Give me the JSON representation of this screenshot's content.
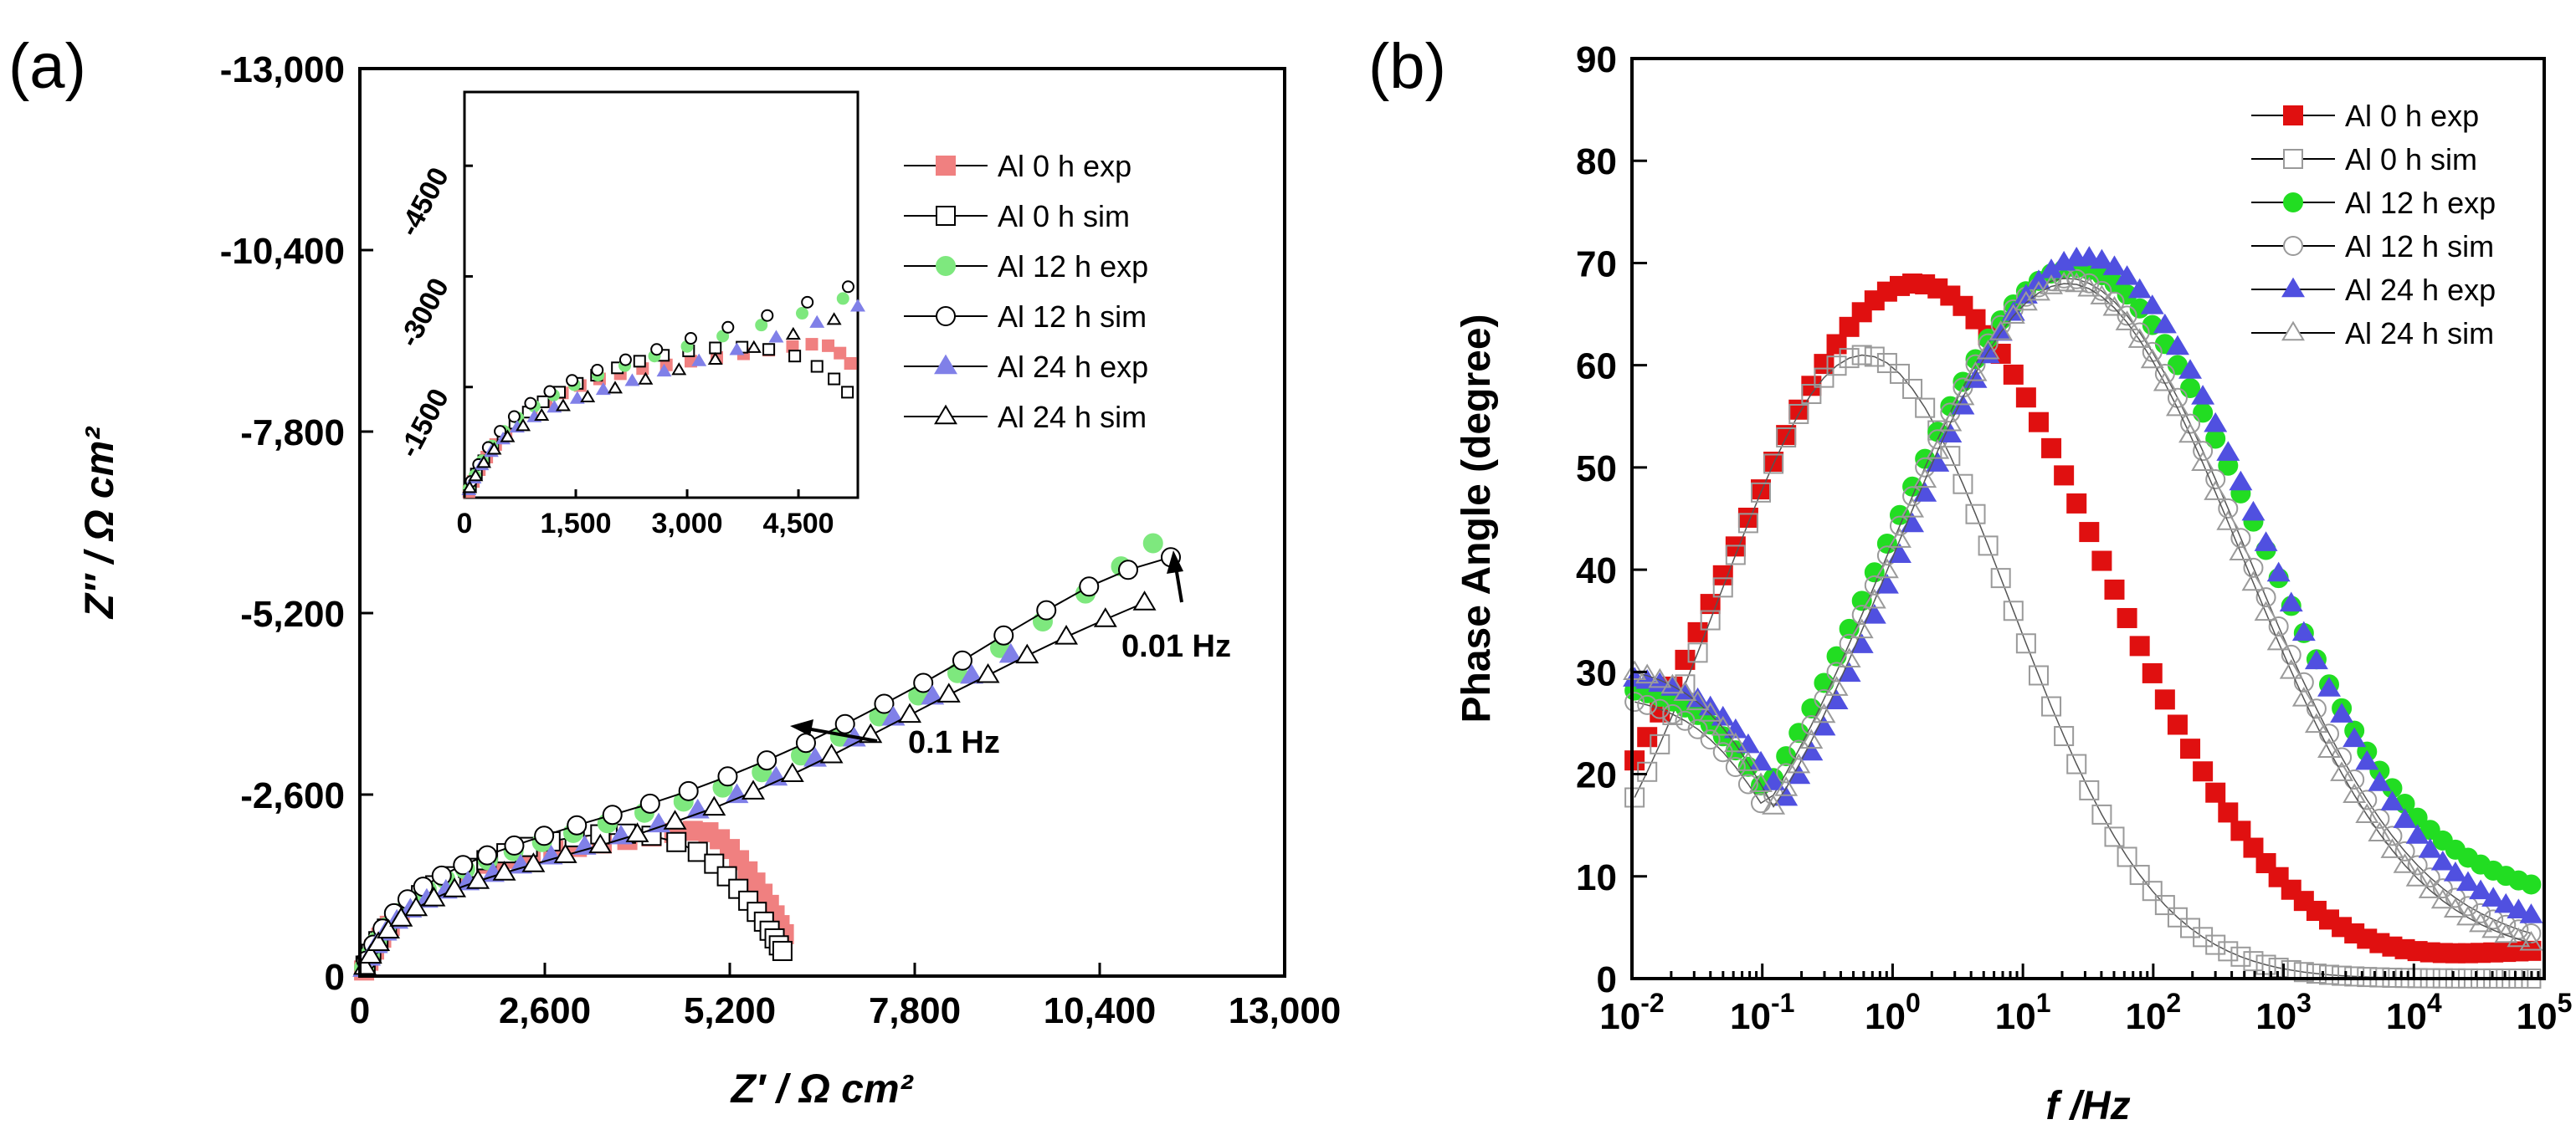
{
  "chart_data": [
    {
      "type": "scatter",
      "panel_label": "(a)",
      "xlabel": "Z′ / Ω cm²",
      "ylabel": "Z′′ / Ω cm²",
      "xlim": [
        0,
        13000
      ],
      "ylim": [
        0,
        -13000
      ],
      "x_ticks": [
        "0",
        "2,600",
        "5,200",
        "7,800",
        "10,400",
        "13,000"
      ],
      "y_ticks": [
        "0",
        "-2,600",
        "-5,200",
        "-7,800",
        "-10,400",
        "-13,000"
      ],
      "annotations": [
        "0.01 Hz",
        "0.1 Hz"
      ],
      "series": [
        {
          "name": "Al 0 h exp",
          "marker": "square",
          "filled": true,
          "color": "#f08080",
          "x": [
            60,
            120,
            200,
            300,
            420,
            560,
            720,
            900,
            1100,
            1320,
            1560,
            1820,
            2100,
            2400,
            2720,
            3050,
            3400,
            3760,
            4100,
            4420,
            4680,
            4900,
            5060,
            5200,
            5330,
            5450,
            5560,
            5660,
            5750,
            5830,
            5900,
            5960
          ],
          "y": [
            -80,
            -220,
            -380,
            -550,
            -720,
            -880,
            -1030,
            -1170,
            -1300,
            -1420,
            -1520,
            -1610,
            -1680,
            -1750,
            -1800,
            -1850,
            -1900,
            -1950,
            -2000,
            -2050,
            -2080,
            -2060,
            -1960,
            -1820,
            -1660,
            -1500,
            -1340,
            -1180,
            -1020,
            -870,
            -730,
            -600
          ]
        },
        {
          "name": "Al 0 h sim",
          "marker": "square",
          "filled": false,
          "color": "#000000",
          "x": [
            80,
            160,
            260,
            380,
            520,
            680,
            860,
            1060,
            1280,
            1520,
            1780,
            2060,
            2360,
            2680,
            3020,
            3380,
            3740,
            4100,
            4450,
            4750,
            4980,
            5160,
            5320,
            5460,
            5580,
            5680,
            5760,
            5830,
            5890,
            5940
          ],
          "y": [
            -150,
            -320,
            -500,
            -680,
            -850,
            -1010,
            -1160,
            -1300,
            -1430,
            -1550,
            -1660,
            -1760,
            -1850,
            -1930,
            -1990,
            -2030,
            -2040,
            -2010,
            -1920,
            -1780,
            -1610,
            -1430,
            -1250,
            -1080,
            -920,
            -780,
            -650,
            -540,
            -440,
            -360
          ]
        },
        {
          "name": "Al 12 h exp",
          "marker": "circle",
          "filled": true,
          "color": "#7ee87e",
          "x": [
            60,
            140,
            240,
            370,
            530,
            720,
            940,
            1200,
            1480,
            1800,
            2160,
            2560,
            3000,
            3480,
            4000,
            4550,
            5100,
            5650,
            6200,
            6750,
            7300,
            7850,
            8400,
            9000,
            9600,
            10200,
            10700,
            11150
          ],
          "y": [
            -120,
            -300,
            -500,
            -700,
            -900,
            -1080,
            -1240,
            -1390,
            -1530,
            -1660,
            -1790,
            -1920,
            -2050,
            -2190,
            -2340,
            -2500,
            -2700,
            -2920,
            -3160,
            -3430,
            -3720,
            -4020,
            -4340,
            -4700,
            -5080,
            -5480,
            -5870,
            -6200
          ]
        },
        {
          "name": "Al 12 h sim",
          "marker": "circle",
          "filled": false,
          "color": "#000000",
          "x": [
            90,
            190,
            320,
            480,
            670,
            890,
            1150,
            1450,
            1790,
            2170,
            2590,
            3050,
            3550,
            4080,
            4620,
            5170,
            5720,
            6270,
            6820,
            7370,
            7920,
            8470,
            9050,
            9650,
            10250,
            10800,
            11400
          ],
          "y": [
            -220,
            -450,
            -680,
            -900,
            -1100,
            -1280,
            -1440,
            -1590,
            -1730,
            -1870,
            -2010,
            -2160,
            -2310,
            -2470,
            -2650,
            -2860,
            -3090,
            -3340,
            -3610,
            -3900,
            -4200,
            -4520,
            -4880,
            -5240,
            -5580,
            -5820,
            -6000
          ]
        },
        {
          "name": "Al 24 h exp",
          "marker": "triangle",
          "filled": true,
          "color": "#8080e8",
          "x": [
            60,
            130,
            230,
            360,
            520,
            710,
            940,
            1210,
            1520,
            1870,
            2260,
            2690,
            3160,
            3670,
            4200,
            4750,
            5300,
            5850,
            6400,
            6950,
            7500,
            8050,
            8600,
            9150
          ],
          "y": [
            -100,
            -260,
            -440,
            -620,
            -790,
            -950,
            -1090,
            -1220,
            -1340,
            -1460,
            -1580,
            -1710,
            -1850,
            -2000,
            -2170,
            -2370,
            -2590,
            -2840,
            -3110,
            -3400,
            -3700,
            -4000,
            -4300,
            -4600
          ]
        },
        {
          "name": "Al 24 h sim",
          "marker": "triangle",
          "filled": false,
          "color": "#000000",
          "x": [
            70,
            150,
            260,
            400,
            580,
            790,
            1040,
            1330,
            1660,
            2030,
            2440,
            2890,
            3380,
            3900,
            4430,
            4980,
            5530,
            6080,
            6630,
            7180,
            7730,
            8280,
            8830,
            9380,
            9930,
            10480,
            11030
          ],
          "y": [
            -130,
            -290,
            -470,
            -650,
            -820,
            -970,
            -1110,
            -1240,
            -1360,
            -1480,
            -1600,
            -1730,
            -1870,
            -2030,
            -2210,
            -2410,
            -2640,
            -2890,
            -3160,
            -3450,
            -3740,
            -4030,
            -4310,
            -4590,
            -4860,
            -5110,
            -5350
          ]
        }
      ],
      "inset": {
        "xlim": [
          0,
          5300
        ],
        "ylim": [
          0,
          -5500
        ],
        "x_ticks": [
          "0",
          "1,500",
          "3,000",
          "4,500"
        ],
        "y_ticks": [
          "-1500",
          "-3000",
          "-4500"
        ]
      },
      "legend": {
        "position": "top-right",
        "entries": [
          "Al 0 h exp",
          "Al 0 h sim",
          "Al 12 h exp",
          "Al 12 h sim",
          "Al 24 h exp",
          "Al 24 h sim"
        ]
      }
    },
    {
      "type": "scatter",
      "panel_label": "(b)",
      "xlabel": "f /Hz",
      "ylabel": "Phase Angle (degree)",
      "xscale": "log",
      "xlim": [
        0.01,
        100000
      ],
      "ylim": [
        0,
        90
      ],
      "x_ticks": [
        {
          "base": "10",
          "exp": "-2"
        },
        {
          "base": "10",
          "exp": "-1"
        },
        {
          "base": "10",
          "exp": "0"
        },
        {
          "base": "10",
          "exp": "1"
        },
        {
          "base": "10",
          "exp": "2"
        },
        {
          "base": "10",
          "exp": "3"
        },
        {
          "base": "10",
          "exp": "4"
        },
        {
          "base": "10",
          "exp": "5"
        }
      ],
      "y_ticks": [
        "0",
        "10",
        "20",
        "30",
        "40",
        "50",
        "60",
        "70",
        "80",
        "90"
      ],
      "series": [
        {
          "name": "Al 0 h exp",
          "marker": "square",
          "filled": true,
          "color": "#e01010",
          "curve": "rc",
          "fc": 1.5,
          "peak": 68,
          "width": 1.9,
          "low": 0,
          "high_tail": 5
        },
        {
          "name": "Al 0 h sim",
          "marker": "square",
          "filled": false,
          "color": "#9a9a9a",
          "curve": "rc",
          "fc": 0.6,
          "peak": 61,
          "width": 1.5,
          "low": 0,
          "high_tail": 0
        },
        {
          "name": "Al 12 h exp",
          "marker": "circle",
          "filled": true,
          "color": "#22dd22",
          "curve": "rc",
          "fc": 25,
          "peak": 69.5,
          "width": 1.95,
          "low": 29,
          "high_tail": 11
        },
        {
          "name": "Al 12 h sim",
          "marker": "circle",
          "filled": false,
          "color": "#9a9a9a",
          "curve": "rc",
          "fc": 22,
          "peak": 68.5,
          "width": 1.85,
          "low": 28,
          "high_tail": 4
        },
        {
          "name": "Al 24 h exp",
          "marker": "triangle",
          "filled": true,
          "color": "#5050e0",
          "curve": "rc",
          "fc": 30,
          "peak": 70.5,
          "width": 1.85,
          "low": 30,
          "high_tail": 6
        },
        {
          "name": "Al 24 h sim",
          "marker": "triangle",
          "filled": false,
          "color": "#9a9a9a",
          "curve": "rc",
          "fc": 22,
          "peak": 68,
          "width": 1.8,
          "low": 31,
          "high_tail": 3
        }
      ],
      "legend": {
        "position": "top-right",
        "entries": [
          "Al 0 h exp",
          "Al 0 h sim",
          "Al 12 h exp",
          "Al 12 h sim",
          "Al 24 h exp",
          "Al 24 h sim"
        ]
      }
    }
  ]
}
